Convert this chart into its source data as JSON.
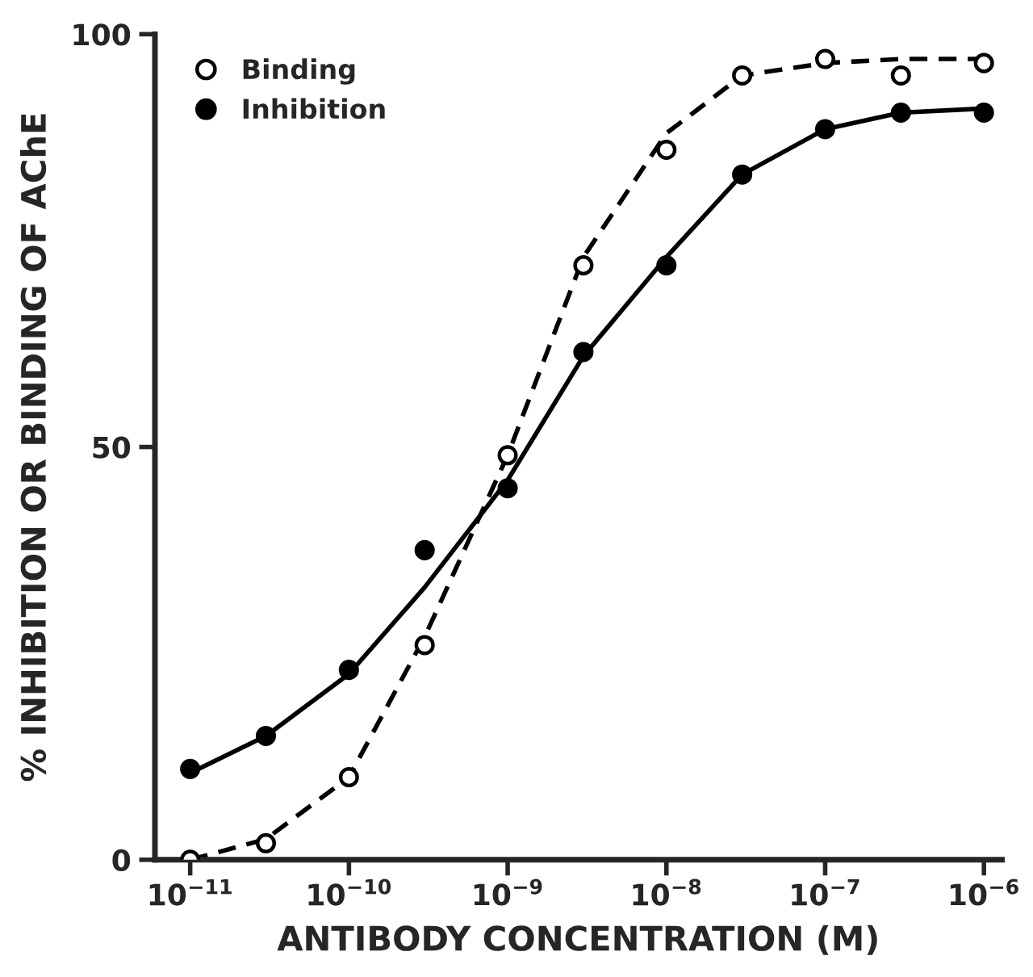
{
  "chart_data": {
    "type": "scatter",
    "xlabel": "ANTIBODY CONCENTRATION (M)",
    "ylabel": "% INHIBITION OR BINDING OF AChE",
    "log": "x",
    "xlim": [
      6e-12,
      1.3e-06
    ],
    "ylim": [
      0,
      100
    ],
    "xticks": [
      {
        "value": 1e-11,
        "label": "10$^{−11}$"
      },
      {
        "value": 1e-10,
        "label": "10$^{−10}$"
      },
      {
        "value": 1e-09,
        "label": "10$^{−9}$"
      },
      {
        "value": 1e-08,
        "label": "10$^{−8}$"
      },
      {
        "value": 1e-07,
        "label": "10$^{−7}$"
      },
      {
        "value": 1e-06,
        "label": "10$^{−6}$"
      }
    ],
    "yticks": [
      0,
      50,
      100
    ],
    "grid": false,
    "legend": "top left",
    "series": [
      {
        "type": "line",
        "line_style": "dashed",
        "marker": "none",
        "color": "#000000",
        "x": [
          1e-11,
          3e-11,
          1e-10,
          3e-10,
          1e-09,
          3e-09,
          1e-08,
          3e-08,
          1e-07,
          3e-07,
          1e-06
        ],
        "values": [
          0,
          2.5,
          10,
          27,
          49,
          73,
          88,
          95,
          96.5,
          97,
          97
        ]
      },
      {
        "type": "line",
        "line_style": "solid",
        "marker": "none",
        "color": "#000000",
        "x": [
          1e-11,
          3e-11,
          1e-10,
          3e-10,
          1e-09,
          3e-09,
          1e-08,
          3e-08,
          1e-07,
          3e-07,
          1e-06
        ],
        "values": [
          10.5,
          15,
          22.5,
          33,
          46,
          61,
          73,
          83,
          88.5,
          90.5,
          91
        ]
      },
      {
        "name": "Binding",
        "marker": "circle",
        "color": "#ffffff",
        "x": [
          1e-11,
          3e-11,
          1e-10,
          3e-10,
          1e-09,
          3e-09,
          1e-08,
          3e-08,
          1e-07,
          3e-07,
          1e-06
        ],
        "values": [
          0,
          2,
          10,
          26,
          49,
          72,
          86,
          95,
          97,
          95,
          96.5
        ]
      },
      {
        "name": "Inhibition",
        "marker": "circle",
        "color": "#000000",
        "x": [
          1e-11,
          3e-11,
          1e-10,
          3e-10,
          1e-09,
          3e-09,
          1e-08,
          3e-08,
          1e-07,
          3e-07,
          1e-06
        ],
        "values": [
          11,
          15,
          23,
          37.5,
          45,
          61.5,
          72,
          83,
          88.5,
          90.5,
          90.5
        ]
      }
    ]
  }
}
